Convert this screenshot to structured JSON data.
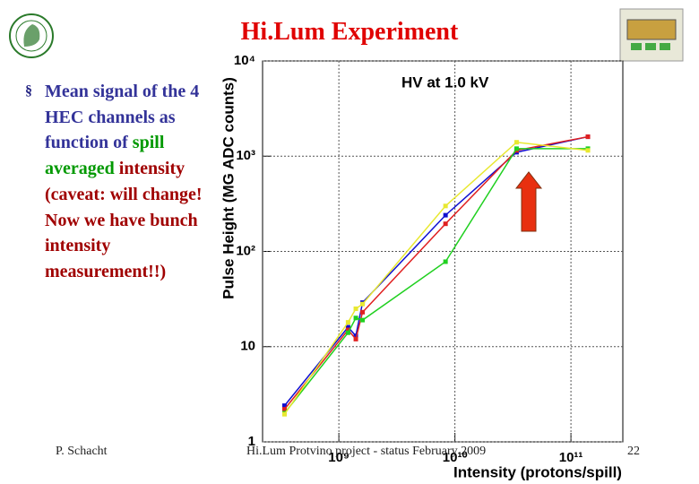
{
  "slide": {
    "title": "Hi.Lum Experiment",
    "bullet": [
      "Mean signal of the 4 HEC channels as function of",
      "spill averaged",
      "intensity (caveat: will change! Now we have bunch intensity measurement!!)"
    ],
    "author": "P. Schacht",
    "footer": "Hi.Lum Protvino project - status February 2009",
    "page": "22"
  },
  "chart_data": {
    "type": "line",
    "title": "HV at 1.0 kV",
    "x_label": "Intensity (protons/spill)",
    "y_label": "Pulse Height (MG ADC counts)",
    "x": [
      340000000,
      1200000000,
      1400000000,
      1600000000,
      8300000000,
      34000000000,
      140000000000
    ],
    "series": [
      {
        "color": "#1010d0",
        "values": [
          2.4,
          16,
          13,
          29,
          240,
          1100,
          1600
        ]
      },
      {
        "color": "#e02020",
        "values": [
          2.2,
          15,
          12,
          23,
          195,
          1150,
          1600
        ]
      },
      {
        "color": "#20d020",
        "values": [
          2.0,
          14,
          20,
          19,
          78,
          1200,
          1200
        ]
      },
      {
        "color": "#e8e830",
        "values": [
          1.95,
          18,
          25,
          28,
          300,
          1400,
          1150
        ]
      }
    ],
    "xlog": true,
    "ylog": true,
    "xlim": [
      220000000,
      280000000000
    ],
    "ylim": [
      1,
      10000
    ],
    "xticks": [
      {
        "value": 1000000000,
        "label": "10⁹"
      },
      {
        "value": 10000000000,
        "label": "10¹⁰"
      },
      {
        "value": 100000000000,
        "label": "10¹¹"
      }
    ],
    "yticks": [
      1,
      10,
      {
        "value": 100,
        "label": "10²"
      },
      {
        "value": 1000,
        "label": "10³"
      },
      {
        "value": 10000,
        "label": "10⁴"
      }
    ],
    "grid": true
  }
}
